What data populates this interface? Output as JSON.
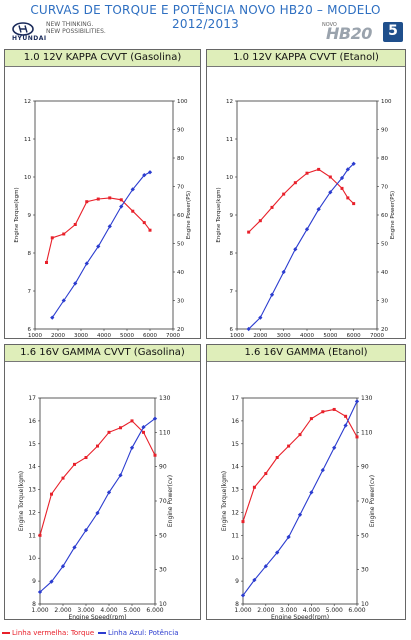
{
  "header": {
    "title": "CURVAS DE TORQUE E POTÊNCIA NOVO HB20 – MODELO 2012/2013",
    "brand": "HYUNDAI",
    "tagline_1": "NEW THINKING.",
    "tagline_2": "NEW POSSIBILITIES.",
    "model_prefix": "NOVO",
    "model": "HB20",
    "badge": "5",
    "colors": {
      "title": "#2e6fc1",
      "badge": "#1f4f8c",
      "panel_header": "#dfeeba"
    }
  },
  "legend": {
    "torque_label": "Linha vermelha: Torque",
    "power_label": "Linha Azul: Potência",
    "torque_color": "#e8202a",
    "power_color": "#2b3ccf"
  },
  "chart_data": [
    {
      "type": "line",
      "title": "1.0 12V KAPPA CVVT (Gasolina)",
      "xlabel": "Engine Speed(rpm)",
      "ylabel_left": "Engine Torque(kgm)",
      "ylabel_right": "Engine Power(PS)",
      "x_ticks": [
        "1000",
        "2000",
        "3000",
        "4000",
        "5000",
        "6000",
        "7000"
      ],
      "xlim": [
        1000,
        7000
      ],
      "ylim_left": [
        6,
        12
      ],
      "ylim_right": [
        20,
        100
      ],
      "y_ticks_left": [
        "6",
        "7",
        "8",
        "9",
        "10",
        "11",
        "12"
      ],
      "y_ticks_right": [
        "20",
        "30",
        "40",
        "50",
        "60",
        "70",
        "80",
        "90",
        "100"
      ],
      "grid": false,
      "series": [
        {
          "axis": "left",
          "color": "#e8202a",
          "marker": "square",
          "x": [
            1500,
            1750,
            2250,
            2750,
            3250,
            3750,
            4250,
            4750,
            5250,
            5750,
            6000
          ],
          "y": [
            7.75,
            8.4,
            8.5,
            8.75,
            9.35,
            9.42,
            9.45,
            9.4,
            9.1,
            8.8,
            8.6
          ]
        },
        {
          "axis": "right",
          "color": "#2b3ccf",
          "marker": "diamond",
          "x": [
            1750,
            2250,
            2750,
            3250,
            3750,
            4250,
            4750,
            5250,
            5750,
            6000
          ],
          "y": [
            24,
            30,
            36,
            43,
            49,
            56,
            63,
            69,
            74,
            75
          ]
        }
      ]
    },
    {
      "type": "line",
      "title": "1.0 12V KAPPA CVVT (Etanol)",
      "xlabel": "Engine Speed(rpm)",
      "ylabel_left": "Engine Torque(kgm)",
      "ylabel_right": "Engine Power(PS)",
      "x_ticks": [
        "1000",
        "2000",
        "3000",
        "4000",
        "5000",
        "6000",
        "7000"
      ],
      "xlim": [
        1000,
        7000
      ],
      "ylim_left": [
        6,
        12
      ],
      "ylim_right": [
        20,
        100
      ],
      "y_ticks_left": [
        "6",
        "7",
        "8",
        "9",
        "10",
        "11",
        "12"
      ],
      "y_ticks_right": [
        "20",
        "30",
        "40",
        "50",
        "60",
        "70",
        "80",
        "90",
        "100"
      ],
      "grid": false,
      "series": [
        {
          "axis": "left",
          "color": "#e8202a",
          "marker": "square",
          "x": [
            1500,
            2000,
            2500,
            3000,
            3500,
            4000,
            4500,
            5000,
            5500,
            5750,
            6000
          ],
          "y": [
            8.55,
            8.85,
            9.2,
            9.55,
            9.85,
            10.1,
            10.2,
            10.0,
            9.7,
            9.45,
            9.3
          ]
        },
        {
          "axis": "right",
          "color": "#2b3ccf",
          "marker": "diamond",
          "x": [
            1500,
            2000,
            2500,
            3000,
            3500,
            4000,
            4500,
            5000,
            5500,
            5750,
            6000
          ],
          "y": [
            18,
            24,
            32,
            40,
            48,
            55,
            62,
            68,
            73,
            76,
            78
          ]
        }
      ]
    },
    {
      "type": "line",
      "title": "1.6 16V GAMMA CVVT (Gasolina)",
      "xlabel": "Engine Speed(rpm)",
      "ylabel_left": "Engine Torque(kgm)",
      "ylabel_right": "Engine Power(cv)",
      "x_ticks": [
        "1.000",
        "2.000",
        "3.000",
        "4.000",
        "5.000",
        "6.000"
      ],
      "xlim": [
        1000,
        6000
      ],
      "ylim_left": [
        8,
        17
      ],
      "ylim_right": [
        10,
        130
      ],
      "y_ticks_left": [
        "8",
        "9",
        "10",
        "11",
        "12",
        "13",
        "14",
        "15",
        "16",
        "17"
      ],
      "y_ticks_right": [
        "10",
        "30",
        "50",
        "70",
        "90",
        "110",
        "130"
      ],
      "grid": false,
      "series": [
        {
          "axis": "left",
          "color": "#e8202a",
          "marker": "square",
          "x": [
            1000,
            1500,
            2000,
            2500,
            3000,
            3500,
            4000,
            4500,
            5000,
            5500,
            6000
          ],
          "y": [
            11.0,
            12.8,
            13.5,
            14.1,
            14.4,
            14.9,
            15.5,
            15.7,
            16.0,
            15.5,
            14.5
          ]
        },
        {
          "axis": "right",
          "color": "#2b3ccf",
          "marker": "diamond",
          "x": [
            1000,
            1500,
            2000,
            2500,
            3000,
            3500,
            4000,
            4500,
            5000,
            5500,
            6000
          ],
          "y": [
            17,
            23,
            32,
            43,
            53,
            63,
            75,
            85,
            101,
            113,
            118
          ]
        }
      ]
    },
    {
      "type": "line",
      "title": "1.6 16V GAMMA (Etanol)",
      "xlabel": "Engine Speed(rpm)",
      "ylabel_left": "Engine Torque(kgm)",
      "ylabel_right": "Engine Power(cv)",
      "x_ticks": [
        "1.000",
        "2.000",
        "3.000",
        "4.000",
        "5.000",
        "6.000"
      ],
      "xlim": [
        1000,
        6000
      ],
      "ylim_left": [
        8,
        17
      ],
      "ylim_right": [
        10,
        130
      ],
      "y_ticks_left": [
        "8",
        "9",
        "10",
        "11",
        "12",
        "13",
        "14",
        "15",
        "16",
        "17"
      ],
      "y_ticks_right": [
        "10",
        "30",
        "50",
        "70",
        "90",
        "110",
        "130"
      ],
      "grid": false,
      "series": [
        {
          "axis": "left",
          "color": "#e8202a",
          "marker": "square",
          "x": [
            1000,
            1500,
            2000,
            2500,
            3000,
            3500,
            4000,
            4500,
            5000,
            5500,
            6000
          ],
          "y": [
            11.6,
            13.1,
            13.7,
            14.4,
            14.9,
            15.4,
            16.1,
            16.4,
            16.5,
            16.2,
            15.3
          ]
        },
        {
          "axis": "right",
          "color": "#2b3ccf",
          "marker": "diamond",
          "x": [
            1000,
            1500,
            2000,
            2500,
            3000,
            3500,
            4000,
            4500,
            5000,
            5500,
            6000
          ],
          "y": [
            15,
            24,
            32,
            40,
            49,
            62,
            75,
            88,
            101,
            114,
            128
          ]
        }
      ]
    }
  ]
}
